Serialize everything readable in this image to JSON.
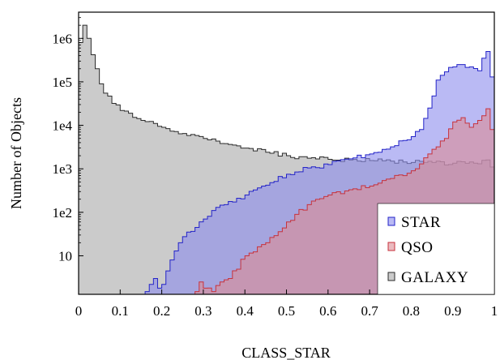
{
  "chart_data": {
    "type": "histogram",
    "xlabel": "CLASS_STAR",
    "ylabel": "Number of Objects",
    "xlim": [
      0,
      1
    ],
    "ylim": [
      1.3,
      4000000
    ],
    "yscale": "log",
    "bin_width": 0.01,
    "x_ticks": [
      {
        "value": 0,
        "label": "0"
      },
      {
        "value": 0.1,
        "label": "0.1"
      },
      {
        "value": 0.2,
        "label": "0.2"
      },
      {
        "value": 0.3,
        "label": "0.3"
      },
      {
        "value": 0.4,
        "label": "0.4"
      },
      {
        "value": 0.5,
        "label": "0.5"
      },
      {
        "value": 0.6,
        "label": "0.6"
      },
      {
        "value": 0.7,
        "label": "0.7"
      },
      {
        "value": 0.8,
        "label": "0.8"
      },
      {
        "value": 0.9,
        "label": "0.9"
      },
      {
        "value": 1,
        "label": "1"
      }
    ],
    "y_ticks": [
      {
        "value": 10,
        "label": "10"
      },
      {
        "value": 100,
        "label": "1e2"
      },
      {
        "value": 1000,
        "label": "1e3"
      },
      {
        "value": 10000,
        "label": "1e4"
      },
      {
        "value": 100000,
        "label": "1e5"
      },
      {
        "value": 1000000,
        "label": "1e6"
      }
    ],
    "legend": {
      "position": "bottom-right"
    },
    "series": [
      {
        "name": "GALAXY",
        "fill": "#a8a8a8",
        "stroke": "#2b2b2b",
        "knots": [
          [
            0,
            800000
          ],
          [
            0.01,
            2000000
          ],
          [
            0.02,
            1000000
          ],
          [
            0.03,
            420000
          ],
          [
            0.04,
            200000
          ],
          [
            0.05,
            90000
          ],
          [
            0.06,
            55000
          ],
          [
            0.08,
            32000
          ],
          [
            0.1,
            22000
          ],
          [
            0.15,
            13000
          ],
          [
            0.2,
            9000
          ],
          [
            0.25,
            6500
          ],
          [
            0.3,
            5000
          ],
          [
            0.35,
            3800
          ],
          [
            0.4,
            3000
          ],
          [
            0.45,
            2400
          ],
          [
            0.5,
            2000
          ],
          [
            0.55,
            1750
          ],
          [
            0.6,
            1650
          ],
          [
            0.65,
            1600
          ],
          [
            0.7,
            1550
          ],
          [
            0.75,
            1500
          ],
          [
            0.8,
            1400
          ],
          [
            0.85,
            1400
          ],
          [
            0.9,
            1350
          ],
          [
            0.95,
            1350
          ],
          [
            0.98,
            1600
          ],
          [
            0.99,
            1100
          ]
        ]
      },
      {
        "name": "STAR",
        "fill": "#8c8ced",
        "stroke": "#2323c8",
        "knots": [
          [
            0.16,
            1.5
          ],
          [
            0.17,
            2.2
          ],
          [
            0.18,
            3.0
          ],
          [
            0.19,
            1.8
          ],
          [
            0.2,
            2.2
          ],
          [
            0.21,
            4.5
          ],
          [
            0.22,
            8
          ],
          [
            0.24,
            20
          ],
          [
            0.26,
            35
          ],
          [
            0.28,
            45
          ],
          [
            0.3,
            70
          ],
          [
            0.32,
            110
          ],
          [
            0.35,
            150
          ],
          [
            0.4,
            250
          ],
          [
            0.45,
            420
          ],
          [
            0.5,
            750
          ],
          [
            0.55,
            1050
          ],
          [
            0.6,
            1250
          ],
          [
            0.65,
            1700
          ],
          [
            0.7,
            2200
          ],
          [
            0.75,
            3200
          ],
          [
            0.8,
            5500
          ],
          [
            0.82,
            8000
          ],
          [
            0.84,
            25000
          ],
          [
            0.86,
            110000
          ],
          [
            0.88,
            170000
          ],
          [
            0.9,
            220000
          ],
          [
            0.92,
            250000
          ],
          [
            0.94,
            220000
          ],
          [
            0.96,
            180000
          ],
          [
            0.97,
            350000
          ],
          [
            0.98,
            500000
          ],
          [
            0.99,
            130000
          ]
        ]
      },
      {
        "name": "QSO",
        "fill": "#dc8c94",
        "stroke": "#c8323c",
        "knots": [
          [
            0.28,
            1.5
          ],
          [
            0.29,
            2.5
          ],
          [
            0.3,
            1.8
          ],
          [
            0.32,
            1.5
          ],
          [
            0.34,
            2.5
          ],
          [
            0.36,
            3
          ],
          [
            0.4,
            10
          ],
          [
            0.45,
            20
          ],
          [
            0.5,
            60
          ],
          [
            0.55,
            150
          ],
          [
            0.6,
            250
          ],
          [
            0.65,
            330
          ],
          [
            0.7,
            400
          ],
          [
            0.75,
            600
          ],
          [
            0.8,
            900
          ],
          [
            0.82,
            1300
          ],
          [
            0.84,
            2200
          ],
          [
            0.86,
            3200
          ],
          [
            0.88,
            5000
          ],
          [
            0.9,
            12000
          ],
          [
            0.92,
            15000
          ],
          [
            0.94,
            9000
          ],
          [
            0.96,
            13000
          ],
          [
            0.98,
            24000
          ],
          [
            0.99,
            8000
          ]
        ]
      }
    ]
  },
  "legend_items": [
    {
      "name": "STAR",
      "fill": "#8c8ced",
      "stroke": "#2323c8"
    },
    {
      "name": "QSO",
      "fill": "#dc8c94",
      "stroke": "#c8323c"
    },
    {
      "name": "GALAXY",
      "fill": "#a8a8a8",
      "stroke": "#2b2b2b"
    }
  ]
}
